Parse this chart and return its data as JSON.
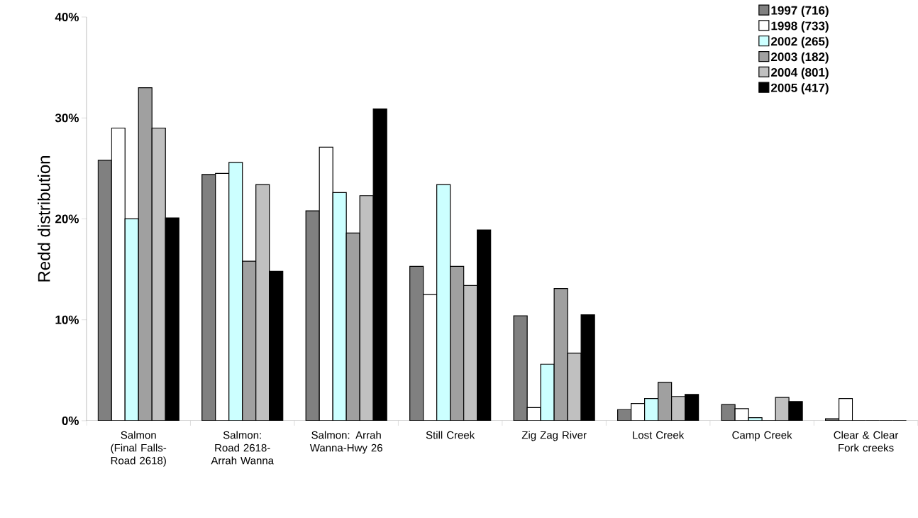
{
  "chart_data": {
    "type": "bar",
    "ylabel": "Redd distribution",
    "categories": [
      "Salmon (Final Falls-Road 2618)",
      "Salmon: Road 2618-Arrah Wanna",
      "Salmon: Arrah Wanna-Hwy 26",
      "Still Creek",
      "Zig Zag River",
      "Lost Creek",
      "Camp Creek",
      "Clear & Clear Fork creeks"
    ],
    "series": [
      {
        "name": "1997 (716)",
        "color": "#808080",
        "values": [
          25.8,
          24.4,
          20.8,
          15.3,
          10.4,
          1.1,
          1.6,
          0.2
        ]
      },
      {
        "name": "1998 (733)",
        "color": "#ffffff",
        "values": [
          29.0,
          24.5,
          27.1,
          12.5,
          1.3,
          1.7,
          1.2,
          2.2
        ]
      },
      {
        "name": "2002 (265)",
        "color": "#ccffff",
        "values": [
          20.0,
          25.6,
          22.6,
          23.4,
          5.6,
          2.2,
          0.3,
          0
        ]
      },
      {
        "name": "2003 (182)",
        "color": "#a0a0a0",
        "values": [
          33.0,
          15.8,
          18.6,
          15.3,
          13.1,
          3.8,
          0,
          0
        ]
      },
      {
        "name": "2004 (801)",
        "color": "#c0c0c0",
        "values": [
          29.0,
          23.4,
          22.3,
          13.4,
          6.7,
          2.4,
          2.3,
          0
        ]
      },
      {
        "name": "2005 (417)",
        "color": "#000000",
        "values": [
          20.1,
          14.8,
          30.9,
          18.9,
          10.5,
          2.6,
          1.9,
          0
        ]
      }
    ],
    "ylim": [
      0,
      40
    ],
    "yticks": [
      {
        "value": 0,
        "label": "0%"
      },
      {
        "value": 10,
        "label": "10%"
      },
      {
        "value": 20,
        "label": "20%"
      },
      {
        "value": 30,
        "label": "30%"
      },
      {
        "value": 40,
        "label": "40%"
      }
    ],
    "grid": false,
    "legend": "top right"
  }
}
